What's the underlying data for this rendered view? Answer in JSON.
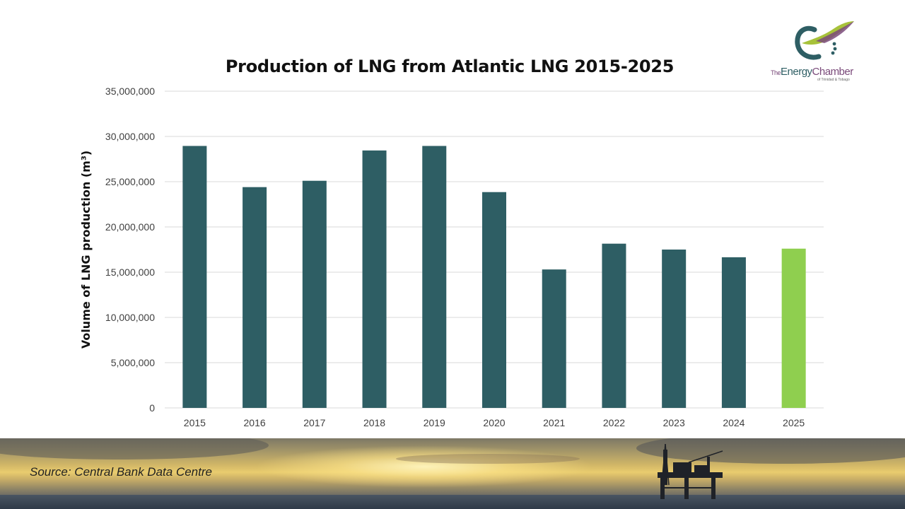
{
  "slide": {
    "source": "Source: Central Bank Data Centre",
    "logo": {
      "brand_the": "The",
      "brand_energy": "Energy",
      "brand_chamber": "Chamber",
      "brand_sub": "of Trinidad & Tobago"
    }
  },
  "chart_data": {
    "type": "bar",
    "title": "Production of LNG from Atlantic LNG 2015-2025",
    "xlabel": "",
    "ylabel": "Volume of LNG production (m³)",
    "ylim": [
      0,
      35000000
    ],
    "yticks": [
      0,
      5000000,
      10000000,
      15000000,
      20000000,
      25000000,
      30000000,
      35000000
    ],
    "ytick_labels": [
      "0",
      "5,000,000",
      "10,000,000",
      "15,000,000",
      "20,000,000",
      "25,000,000",
      "30,000,000",
      "35,000,000"
    ],
    "grid": true,
    "categories": [
      "2015",
      "2016",
      "2017",
      "2018",
      "2019",
      "2020",
      "2021",
      "2022",
      "2023",
      "2024",
      "2025"
    ],
    "values": [
      28950000,
      24400000,
      25100000,
      28450000,
      28950000,
      23850000,
      15300000,
      18150000,
      17500000,
      16650000,
      17600000
    ],
    "colors": {
      "bar": "#2e5e64",
      "highlight": "#8fcf4f",
      "grid": "#d9d9d9",
      "axis_text": "#404040"
    },
    "highlight_category": "2025"
  }
}
